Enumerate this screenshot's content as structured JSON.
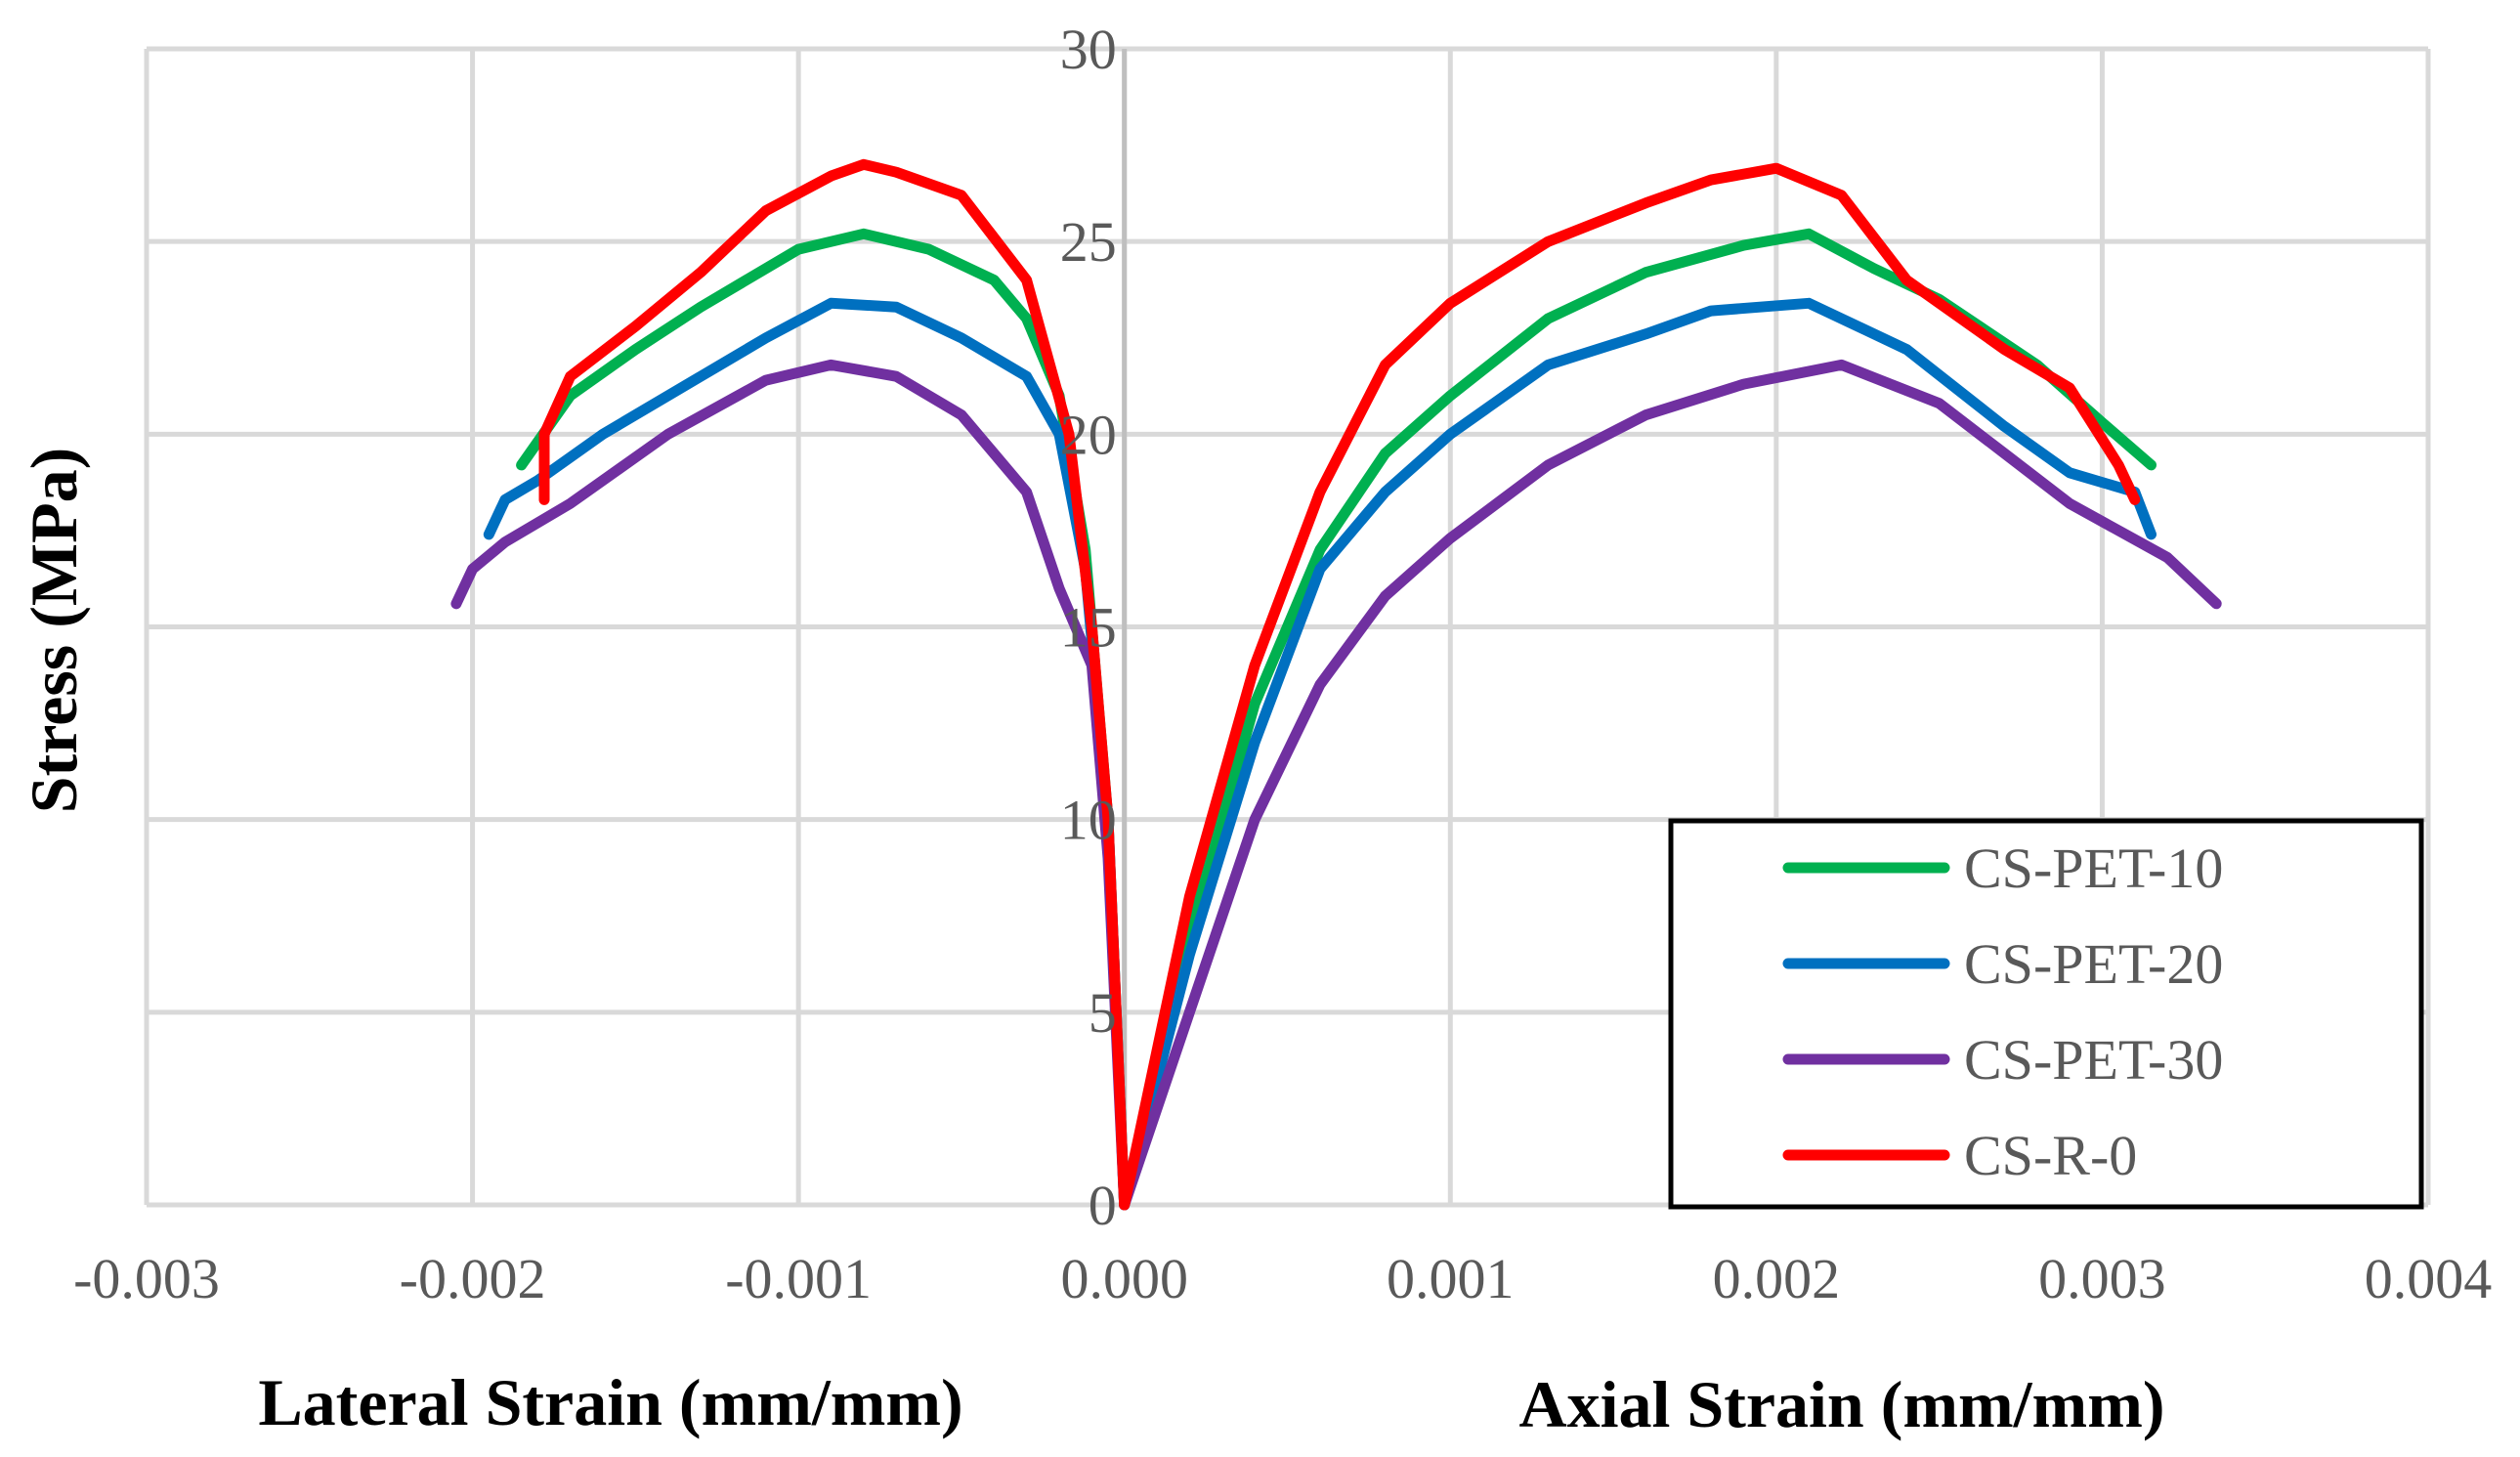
{
  "chart_data": {
    "type": "line",
    "xlabel_left": "Lateral Strain (mm/mm)",
    "xlabel_right": "Axial Strain (mm/mm)",
    "ylabel": "Stress (MPa)",
    "xlim": [
      -0.003,
      0.004
    ],
    "ylim": [
      0,
      30
    ],
    "xticks": [
      -0.003,
      -0.002,
      -0.001,
      0.0,
      0.001,
      0.002,
      0.003,
      0.004
    ],
    "xtick_labels": [
      "-0.003",
      "-0.002",
      "-0.001",
      "0.000",
      "0.001",
      "0.002",
      "0.003",
      "0.004"
    ],
    "yticks": [
      0,
      5,
      10,
      15,
      20,
      25,
      30
    ],
    "ytick_labels": [
      "0",
      "5",
      "10",
      "15",
      "20",
      "25",
      "30"
    ],
    "grid": true,
    "legend_position": "bottom-right",
    "series": [
      {
        "name": "CS-PET-10",
        "color": "#00b050",
        "lateral": [
          [
            0,
            0
          ],
          [
            -5e-05,
            10
          ],
          [
            -0.00012,
            17
          ],
          [
            -0.0002,
            21
          ],
          [
            -0.0003,
            23
          ],
          [
            -0.0004,
            24
          ],
          [
            -0.0006,
            24.8
          ],
          [
            -0.0008,
            25.2
          ],
          [
            -0.001,
            24.8
          ],
          [
            -0.0013,
            23.3
          ],
          [
            -0.0015,
            22.2
          ],
          [
            -0.0017,
            21
          ],
          [
            -0.00185,
            19.2
          ]
        ],
        "axial": [
          [
            0,
            0
          ],
          [
            0.0002,
            7
          ],
          [
            0.0004,
            13
          ],
          [
            0.0006,
            17
          ],
          [
            0.0008,
            19.5
          ],
          [
            0.001,
            21
          ],
          [
            0.0013,
            23
          ],
          [
            0.0016,
            24.2
          ],
          [
            0.0019,
            24.9
          ],
          [
            0.0021,
            25.2
          ],
          [
            0.0023,
            24.3
          ],
          [
            0.0025,
            23.5
          ],
          [
            0.0028,
            21.8
          ],
          [
            0.003,
            20.3
          ],
          [
            0.00315,
            19.2
          ]
        ]
      },
      {
        "name": "CS-PET-20",
        "color": "#0070c0",
        "lateral": [
          [
            0,
            0
          ],
          [
            -5e-05,
            10
          ],
          [
            -0.00012,
            16.5
          ],
          [
            -0.0002,
            20
          ],
          [
            -0.0003,
            21.5
          ],
          [
            -0.0005,
            22.5
          ],
          [
            -0.0007,
            23.3
          ],
          [
            -0.0009,
            23.4
          ],
          [
            -0.0011,
            22.5
          ],
          [
            -0.0013,
            21.5
          ],
          [
            -0.0016,
            20
          ],
          [
            -0.0018,
            18.8
          ],
          [
            -0.0019,
            18.3
          ],
          [
            -0.00195,
            17.4
          ]
        ],
        "axial": [
          [
            0,
            0
          ],
          [
            0.0002,
            6.5
          ],
          [
            0.0004,
            12
          ],
          [
            0.0006,
            16.5
          ],
          [
            0.0008,
            18.5
          ],
          [
            0.001,
            20
          ],
          [
            0.0013,
            21.8
          ],
          [
            0.0016,
            22.6
          ],
          [
            0.0018,
            23.2
          ],
          [
            0.0021,
            23.4
          ],
          [
            0.0024,
            22.2
          ],
          [
            0.0027,
            20.2
          ],
          [
            0.0029,
            19
          ],
          [
            0.0031,
            18.5
          ],
          [
            0.00315,
            17.4
          ]
        ]
      },
      {
        "name": "CS-PET-30",
        "color": "#7030a0",
        "lateral": [
          [
            0,
            0
          ],
          [
            -5e-05,
            9
          ],
          [
            -0.0001,
            14
          ],
          [
            -0.0002,
            16
          ],
          [
            -0.0003,
            18.5
          ],
          [
            -0.0005,
            20.5
          ],
          [
            -0.0007,
            21.5
          ],
          [
            -0.0009,
            21.8
          ],
          [
            -0.0011,
            21.4
          ],
          [
            -0.0014,
            20
          ],
          [
            -0.0017,
            18.2
          ],
          [
            -0.0019,
            17.2
          ],
          [
            -0.002,
            16.5
          ],
          [
            -0.00205,
            15.6
          ]
        ],
        "axial": [
          [
            0,
            0
          ],
          [
            0.0002,
            5
          ],
          [
            0.0004,
            10
          ],
          [
            0.0006,
            13.5
          ],
          [
            0.0008,
            15.8
          ],
          [
            0.001,
            17.3
          ],
          [
            0.0013,
            19.2
          ],
          [
            0.0016,
            20.5
          ],
          [
            0.0019,
            21.3
          ],
          [
            0.0022,
            21.8
          ],
          [
            0.0025,
            20.8
          ],
          [
            0.0027,
            19.5
          ],
          [
            0.0029,
            18.2
          ],
          [
            0.0032,
            16.8
          ],
          [
            0.00335,
            15.6
          ]
        ]
      },
      {
        "name": "CS-R-0",
        "color": "#ff0000",
        "lateral": [
          [
            0,
            0
          ],
          [
            -5e-05,
            10
          ],
          [
            -0.0001,
            15
          ],
          [
            -0.00017,
            20
          ],
          [
            -0.0003,
            24
          ],
          [
            -0.0005,
            26.2
          ],
          [
            -0.0007,
            26.8
          ],
          [
            -0.0008,
            27
          ],
          [
            -0.0009,
            26.7
          ],
          [
            -0.0011,
            25.8
          ],
          [
            -0.0013,
            24.2
          ],
          [
            -0.0015,
            22.8
          ],
          [
            -0.0017,
            21.5
          ],
          [
            -0.00178,
            20
          ],
          [
            -0.00178,
            18.3
          ]
        ],
        "axial": [
          [
            0,
            0
          ],
          [
            0.0002,
            8
          ],
          [
            0.0004,
            14
          ],
          [
            0.0006,
            18.5
          ],
          [
            0.0008,
            21.8
          ],
          [
            0.001,
            23.4
          ],
          [
            0.0013,
            25
          ],
          [
            0.0016,
            26
          ],
          [
            0.0018,
            26.6
          ],
          [
            0.002,
            26.9
          ],
          [
            0.0022,
            26.2
          ],
          [
            0.0024,
            24
          ],
          [
            0.0027,
            22.2
          ],
          [
            0.0029,
            21.2
          ],
          [
            0.00305,
            19.2
          ],
          [
            0.0031,
            18.3
          ]
        ]
      }
    ]
  }
}
